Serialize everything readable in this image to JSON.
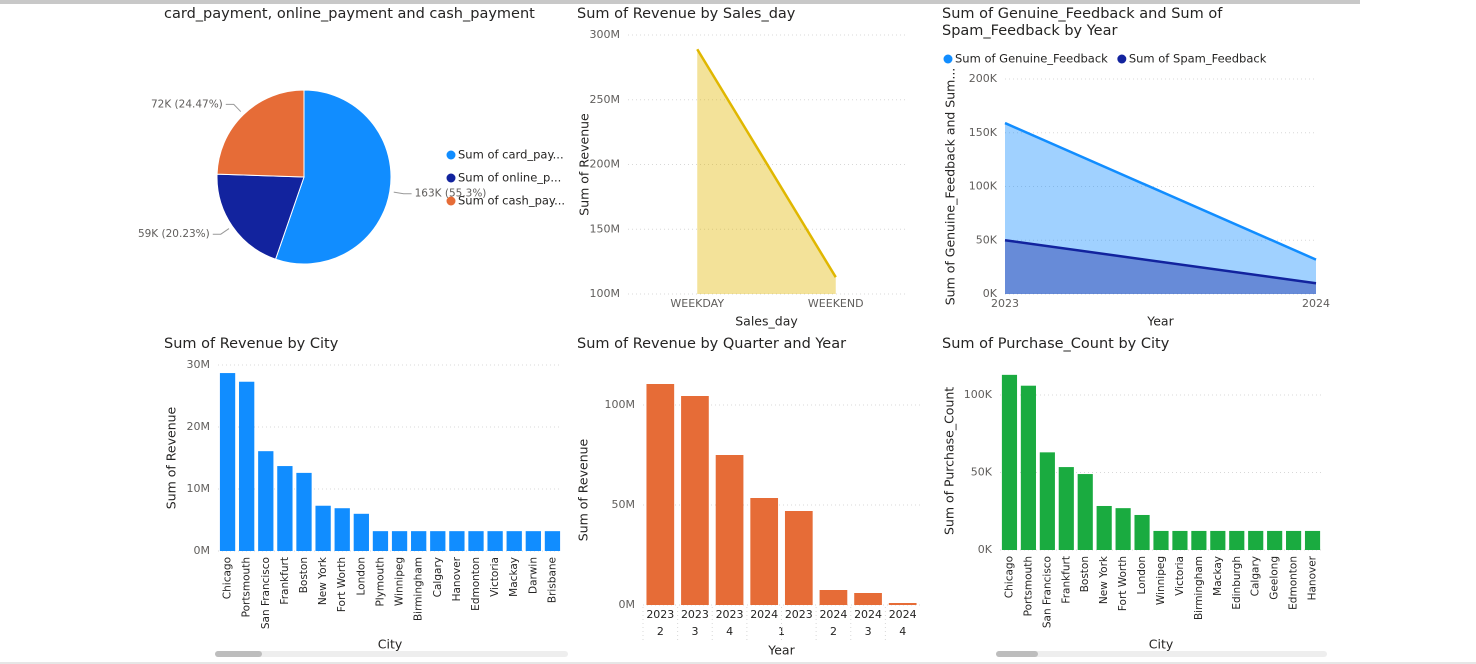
{
  "chart_data": [
    {
      "type": "pie",
      "title": "card_payment, online_payment and cash_payment",
      "categories": [
        "Sum of card_pay...",
        "Sum of online_p...",
        "Sum of cash_pay..."
      ],
      "values": [
        162580,
        59480,
        71940
      ],
      "value_labels": [
        "163K (55.3%)",
        "59K (20.23%)",
        "72K (24.47%)"
      ],
      "colors": [
        "#118DFF",
        "#12239E",
        "#E66C37"
      ]
    },
    {
      "type": "area",
      "title": "Sum of Revenue by Sales_day",
      "categories": [
        "WEEKDAY",
        "WEEKEND"
      ],
      "values": [
        289000000,
        113000000
      ],
      "color": "#E0B700",
      "x_label": "Sales_day",
      "y_label": "Sum of Revenue",
      "ylim": [
        100000000,
        300000000
      ],
      "yticks": [
        {
          "value": 100000000,
          "label": "100M"
        },
        {
          "value": 150000000,
          "label": "150M"
        },
        {
          "value": 200000000,
          "label": "200M"
        },
        {
          "value": 250000000,
          "label": "250M"
        },
        {
          "value": 300000000,
          "label": "300M"
        }
      ],
      "grid": true
    },
    {
      "type": "area",
      "title": "Sum of Genuine_Feedback and Sum of Spam_Feedback by Year",
      "categories": [
        "2023",
        "2024"
      ],
      "series": [
        {
          "name": "Sum of Genuine_Feedback",
          "color": "#118DFF",
          "values": [
            159000,
            32000
          ]
        },
        {
          "name": "Sum of Spam_Feedback",
          "color": "#12239E",
          "values": [
            50000,
            10000
          ]
        }
      ],
      "x_label": "Year",
      "y_label": "Sum of Genuine_Feedback and Sum...",
      "ylim": [
        0,
        200000
      ],
      "yticks": [
        {
          "value": 0,
          "label": "0K"
        },
        {
          "value": 50000,
          "label": "50K"
        },
        {
          "value": 100000,
          "label": "100K"
        },
        {
          "value": 150000,
          "label": "150K"
        },
        {
          "value": 200000,
          "label": "200K"
        }
      ],
      "grid": true,
      "legend": "top-left"
    },
    {
      "type": "bar",
      "title": "Sum of Revenue by City",
      "categories": [
        "Chicago",
        "Portsmouth",
        "San Francisco",
        "Frankfurt",
        "Boston",
        "New York",
        "Fort Worth",
        "London",
        "Plymouth",
        "Winnipeg",
        "Birmingham",
        "Calgary",
        "Hanover",
        "Edmonton",
        "Victoria",
        "Mackay",
        "Darwin",
        "Brisbane"
      ],
      "values": [
        28700000,
        27300000,
        16100000,
        13700000,
        12600000,
        7300000,
        6900000,
        6000000,
        3200000,
        3200000,
        3200000,
        3200000,
        3200000,
        3200000,
        3200000,
        3200000,
        3200000,
        3200000
      ],
      "color": "#118DFF",
      "x_label": "City",
      "y_label": "Sum of Revenue",
      "ylim": [
        0,
        30000000
      ],
      "yticks": [
        {
          "value": 0,
          "label": "0M"
        },
        {
          "value": 10000000,
          "label": "10M"
        },
        {
          "value": 20000000,
          "label": "20M"
        },
        {
          "value": 30000000,
          "label": "30M"
        }
      ],
      "grid": true
    },
    {
      "type": "bar",
      "title": "Sum of Revenue by Quarter and Year",
      "categories": [
        "2023",
        "2023",
        "2023",
        "2024",
        "2023",
        "2024",
        "2024",
        "2024"
      ],
      "quarters": [
        "2",
        "3",
        "4",
        "1",
        null,
        "2",
        "3",
        "4"
      ],
      "values": [
        110500000,
        104500000,
        75000000,
        53500000,
        47000000,
        7500000,
        6000000,
        1000000
      ],
      "color": "#E66C37",
      "x_label": "Year",
      "y_label": "Sum of Revenue",
      "ylim": [
        0,
        115000000
      ],
      "yticks": [
        {
          "value": 0,
          "label": "0M"
        },
        {
          "value": 50000000,
          "label": "50M"
        },
        {
          "value": 100000000,
          "label": "100M"
        }
      ],
      "grid": true
    },
    {
      "type": "bar",
      "title": "Sum of Purchase_Count by City",
      "categories": [
        "Chicago",
        "Portsmouth",
        "San Francisco",
        "Frankfurt",
        "Boston",
        "New York",
        "Fort Worth",
        "London",
        "Winnipeg",
        "Victoria",
        "Birmingham",
        "Mackay",
        "Edinburgh",
        "Calgary",
        "Geelong",
        "Edmonton",
        "Hanover"
      ],
      "values": [
        113000,
        106000,
        63000,
        53500,
        49000,
        28400,
        27000,
        22600,
        12300,
        12300,
        12300,
        12300,
        12300,
        12300,
        12300,
        12300,
        12300
      ],
      "color": "#1AAB40",
      "x_label": "City",
      "y_label": "Sum of Purchase_Count",
      "ylim": [
        0,
        115000
      ],
      "yticks": [
        {
          "value": 0,
          "label": "0K"
        },
        {
          "value": 50000,
          "label": "50K"
        },
        {
          "value": 100000,
          "label": "100K"
        }
      ],
      "grid": true
    }
  ]
}
